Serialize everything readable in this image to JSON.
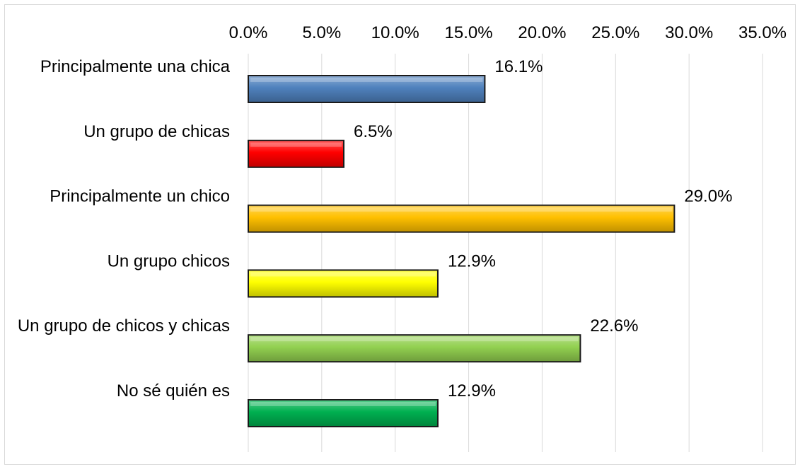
{
  "chart_data": {
    "type": "bar",
    "orientation": "horizontal",
    "categories": [
      "Principalmente una chica",
      "Un grupo de chicas",
      "Principalmente un chico",
      "Un grupo chicos",
      "Un grupo de chicos y chicas",
      "No sé quién es"
    ],
    "values": [
      16.1,
      6.5,
      29.0,
      12.9,
      22.6,
      12.9
    ],
    "data_labels": [
      "16.1%",
      "6.5%",
      "29.0%",
      "12.9%",
      "22.6%",
      "12.9%"
    ],
    "bar_colors": [
      "#4f81bd",
      "#ff0000",
      "#ffc000",
      "#ffff00",
      "#92d050",
      "#00b050"
    ],
    "xlim": [
      0,
      35
    ],
    "x_ticks": [
      0,
      5,
      10,
      15,
      20,
      25,
      30,
      35
    ],
    "x_tick_labels": [
      "0.0%",
      "5.0%",
      "10.0%",
      "15.0%",
      "20.0%",
      "25.0%",
      "30.0%",
      "35.0%"
    ],
    "x_axis_position": "top",
    "grid": true,
    "legend": "none",
    "title": "",
    "xlabel": "",
    "ylabel": ""
  }
}
